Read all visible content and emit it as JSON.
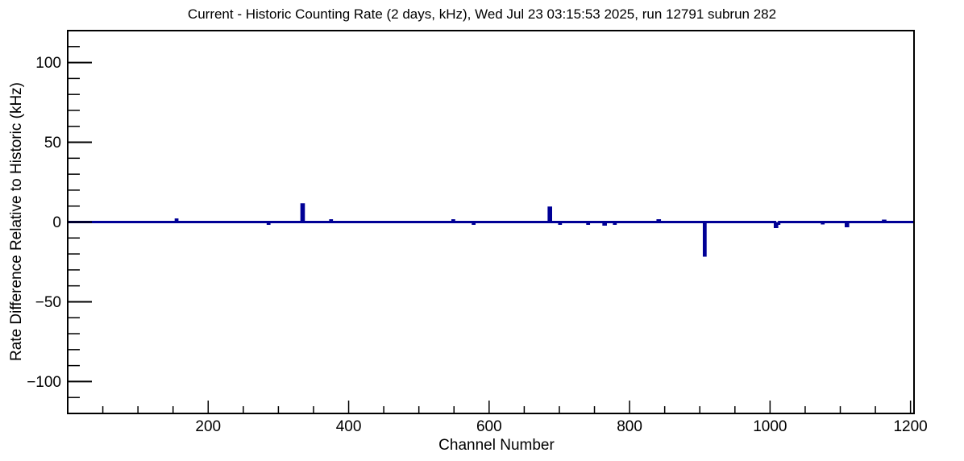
{
  "window": {
    "background": "#ffffff"
  },
  "chart_data": {
    "type": "line",
    "title": "Current - Historic Counting Rate (2 days, kHz), Wed Jul 23 03:15:53 2025, run 12791 subrun 282",
    "xlabel": "Channel Number",
    "ylabel": "Rate Difference Relative to Historic (kHz)",
    "xlim": [
      0,
      1205
    ],
    "ylim": [
      -120,
      120
    ],
    "grid": false,
    "legend": "none",
    "line_color": "#000096",
    "axis_color": "#000000",
    "x_major_step": 200,
    "x_minor_step": 50,
    "y_major_step": 50,
    "y_minor_step": 10,
    "x_ticks": [
      {
        "value": 200,
        "label": "200"
      },
      {
        "value": 400,
        "label": "400"
      },
      {
        "value": 600,
        "label": "600"
      },
      {
        "value": 800,
        "label": "800"
      },
      {
        "value": 1000,
        "label": "1000"
      },
      {
        "value": 1200,
        "label": "1200"
      }
    ],
    "y_ticks": [
      {
        "value": 100,
        "label": "100"
      },
      {
        "value": 50,
        "label": "50"
      },
      {
        "value": 0,
        "label": "0"
      },
      {
        "value": -50,
        "label": "−50"
      },
      {
        "value": -100,
        "label": "−100"
      }
    ],
    "baseline_value": 0,
    "series": [
      {
        "name": "rate-difference",
        "description": "flat at 0 with narrow spikes; each spike = [start_channel, end_channel, value_kHz]",
        "spikes": [
          [
            154,
            156,
            1.5
          ],
          [
            285,
            287,
            -1
          ],
          [
            333,
            336,
            11
          ],
          [
            374,
            376,
            1
          ],
          [
            548,
            550,
            1
          ],
          [
            577,
            579,
            -1
          ],
          [
            685,
            688,
            9
          ],
          [
            700,
            702,
            -1
          ],
          [
            740,
            742,
            -1
          ],
          [
            763,
            766,
            -1.5
          ],
          [
            778,
            780,
            -1
          ],
          [
            840,
            843,
            1
          ],
          [
            906,
            908,
            -21
          ],
          [
            1007,
            1010,
            -3
          ],
          [
            1010,
            1013,
            -1
          ],
          [
            1074,
            1076,
            -0.75
          ],
          [
            1108,
            1111,
            -2.5
          ],
          [
            1161,
            1164,
            0.75
          ]
        ]
      }
    ]
  }
}
